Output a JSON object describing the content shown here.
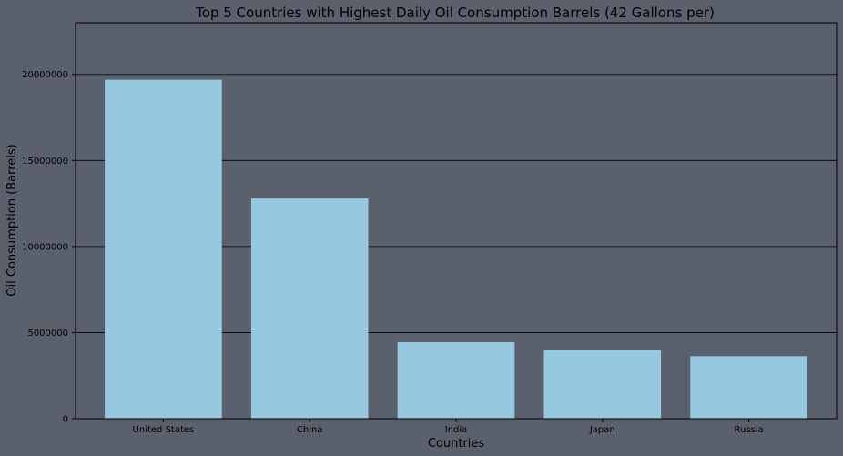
{
  "chart_data": {
    "type": "bar",
    "title": "Top 5 Countries with Highest Daily Oil Consumption Barrels (42 Gallons per)",
    "xlabel": "Countries",
    "ylabel": "Oil Consumption (Barrels)",
    "categories": [
      "United States",
      "China",
      "India",
      "Japan",
      "Russia"
    ],
    "values": [
      19690000,
      12790000,
      4443000,
      4012000,
      3631000
    ],
    "ylim": [
      0,
      23000000
    ],
    "yticks": [
      0,
      5000000,
      10000000,
      15000000,
      20000000
    ],
    "ytick_labels": [
      "0",
      "5000000",
      "10000000",
      "15000000",
      "20000000"
    ],
    "grid": "horizontal",
    "colors": {
      "background": "#5a606c",
      "bar": "#94c9df",
      "grid": "#000000",
      "text": "#000000"
    }
  }
}
